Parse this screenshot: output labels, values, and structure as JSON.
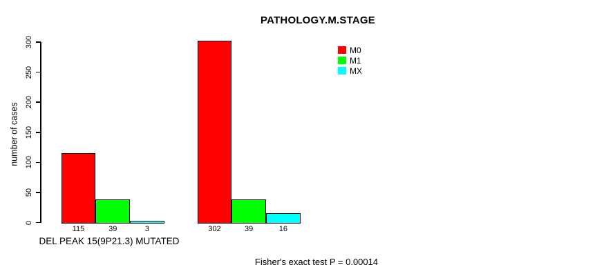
{
  "chart_data": {
    "type": "bar",
    "title": "PATHOLOGY.M.STAGE",
    "ylabel": "number of cases",
    "xlabel": "",
    "categories": [
      "DEL PEAK 15(9P21.3) MUTATED",
      ""
    ],
    "series": [
      {
        "name": "M0",
        "color": "#ff0000",
        "values": [
          115,
          302
        ]
      },
      {
        "name": "M1",
        "color": "#00ff00",
        "values": [
          39,
          39
        ]
      },
      {
        "name": "MX",
        "color": "#00ffff",
        "values": [
          3,
          16
        ]
      }
    ],
    "bar_value_labels": [
      [
        115,
        39,
        3
      ],
      [
        302,
        39,
        16
      ]
    ],
    "ylim": [
      0,
      300
    ],
    "yticks": [
      0,
      50,
      100,
      150,
      200,
      250,
      300
    ],
    "grid": "off",
    "legend_position": "top-right",
    "annotation": "Fisher's exact test P = 0.00014"
  },
  "colors": {
    "background": "#ffffff",
    "axis": "#000000",
    "bar_border": "#000000",
    "M0": "#ff0000",
    "M1": "#00ff00",
    "MX": "#00ffff"
  }
}
